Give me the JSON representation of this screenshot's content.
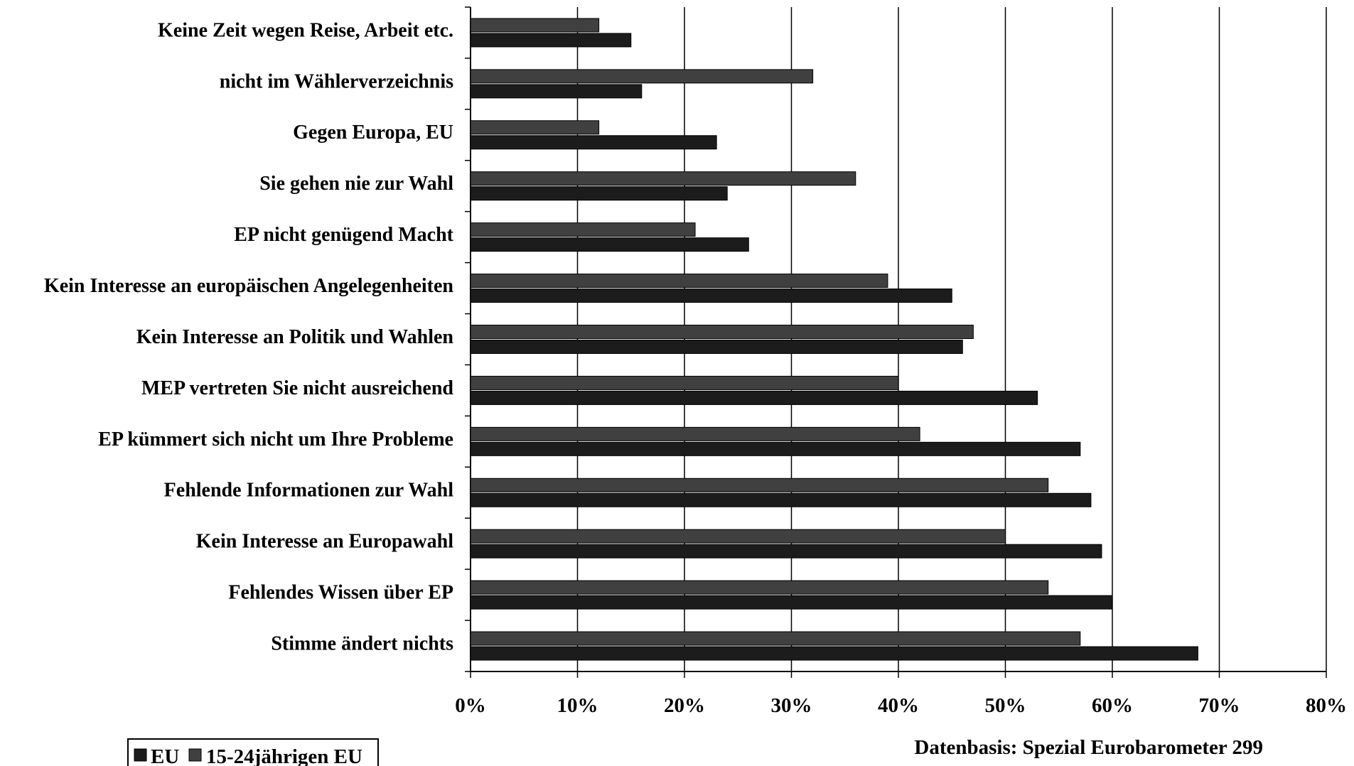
{
  "chart_data": {
    "type": "bar",
    "orientation": "horizontal",
    "title": "",
    "xlabel": "",
    "ylabel": "",
    "xlim": [
      0,
      80
    ],
    "x_tick_values": [
      0,
      10,
      20,
      30,
      40,
      50,
      60,
      70,
      80
    ],
    "x_tick_labels": [
      "0%",
      "10%",
      "20%",
      "30%",
      "40%",
      "50%",
      "60%",
      "70%",
      "80%"
    ],
    "grid": "vertical",
    "legend_position": "bottom-left",
    "categories": [
      "Keine Zeit wegen Reise, Arbeit etc.",
      "nicht im Wählerverzeichnis",
      "Gegen Europa, EU",
      "Sie gehen nie zur Wahl",
      "EP nicht genügend Macht",
      "Kein Interesse an europäischen Angelegenheiten",
      "Kein Interesse an Politik und Wahlen",
      "MEP vertreten Sie nicht ausreichend",
      "EP kümmert sich nicht um Ihre Probleme",
      "Fehlende Informationen zur Wahl",
      "Kein Interesse an Europawahl",
      "Fehlendes Wissen über EP",
      "Stimme ändert nichts"
    ],
    "series": [
      {
        "name": "EU",
        "color": "#1c1c1c",
        "values": [
          15,
          16,
          23,
          24,
          26,
          45,
          46,
          53,
          57,
          58,
          59,
          60,
          68
        ]
      },
      {
        "name": "15-24jährigen EU",
        "color": "#404040",
        "values": [
          12,
          32,
          12,
          36,
          21,
          39,
          47,
          40,
          42,
          54,
          50,
          54,
          57
        ]
      }
    ]
  },
  "source_note": "Datenbasis: Spezial Eurobarometer 299"
}
